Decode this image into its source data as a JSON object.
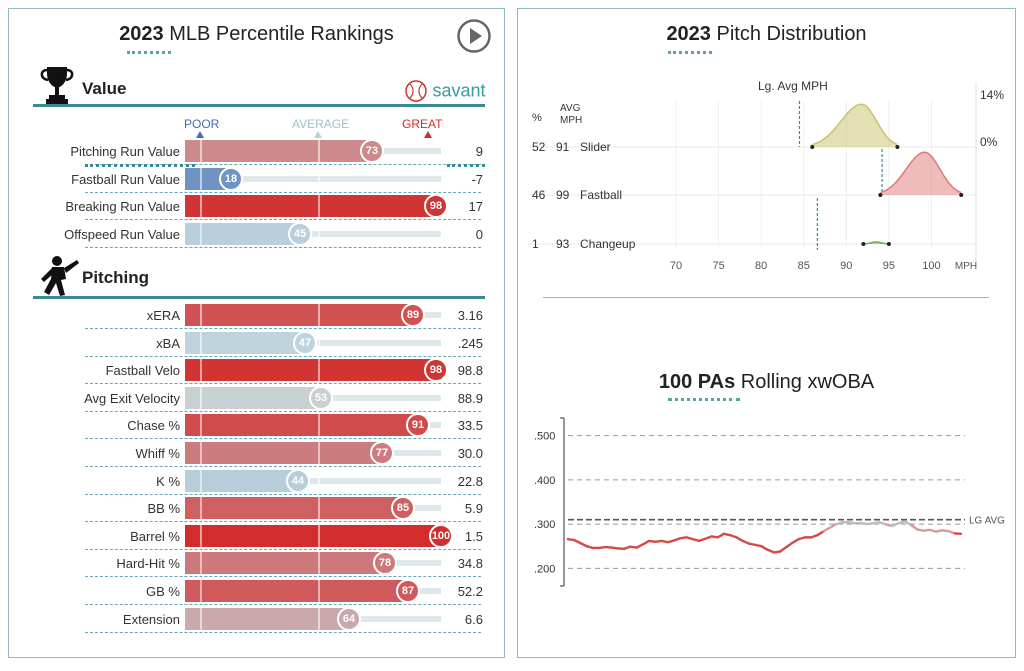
{
  "left": {
    "title_year": "2023",
    "title_rest": "MLB Percentile Rankings",
    "play_icon": "play-icon",
    "value_header": "Value",
    "value_icon": "trophy-icon",
    "savant_label": "savant",
    "savant_icon": "baseball-icon",
    "scale_labels": {
      "poor": "POOR",
      "average": "AVERAGE",
      "great": "GREAT"
    },
    "pitching_header": "Pitching",
    "pitching_icon": "pitcher-icon",
    "colors": {
      "poor": "#3e6cb5",
      "average": "#c7dadf",
      "great": "#d22c2c"
    },
    "value_rows": [
      {
        "label": "Pitching Run Value",
        "percentile": 73,
        "value": "9"
      },
      {
        "label": "Fastball Run Value",
        "percentile": 18,
        "value": "-7"
      },
      {
        "label": "Breaking Run Value",
        "percentile": 98,
        "value": "17"
      },
      {
        "label": "Offspeed Run Value",
        "percentile": 45,
        "value": "0"
      }
    ],
    "pitching_rows": [
      {
        "label": "xERA",
        "percentile": 89,
        "value": "3.16"
      },
      {
        "label": "xBA",
        "percentile": 47,
        "value": ".245"
      },
      {
        "label": "Fastball Velo",
        "percentile": 98,
        "value": "98.8"
      },
      {
        "label": "Avg Exit Velocity",
        "percentile": 53,
        "value": "88.9"
      },
      {
        "label": "Chase %",
        "percentile": 91,
        "value": "33.5"
      },
      {
        "label": "Whiff %",
        "percentile": 77,
        "value": "30.0"
      },
      {
        "label": "K %",
        "percentile": 44,
        "value": "22.8"
      },
      {
        "label": "BB %",
        "percentile": 85,
        "value": "5.9"
      },
      {
        "label": "Barrel %",
        "percentile": 100,
        "value": "1.5"
      },
      {
        "label": "Hard-Hit %",
        "percentile": 78,
        "value": "34.8"
      },
      {
        "label": "GB %",
        "percentile": 87,
        "value": "52.2"
      },
      {
        "label": "Extension",
        "percentile": 64,
        "value": "6.6"
      }
    ]
  },
  "right": {
    "pitch_title_year": "2023",
    "pitch_title_rest": "Pitch Distribution",
    "rolling_title_bold": "100 PAs",
    "rolling_title_rest": "Rolling xwOBA"
  },
  "chart_data": [
    {
      "type": "area",
      "title": "2023 Pitch Distribution",
      "column_headers": [
        "%",
        "AVG MPH"
      ],
      "lg_avg_label": "Lg. Avg MPH",
      "y_max_label": "14%",
      "y_min_label": "0%",
      "x_ticks": [
        70,
        75,
        80,
        85,
        90,
        95,
        100
      ],
      "x_unit": "MPH",
      "xlim": [
        66,
        105
      ],
      "pitches": [
        {
          "name": "Slider",
          "pct": 52,
          "avg_mph": 91,
          "color": "#c8c26a",
          "range": [
            86,
            96
          ],
          "peak": 91.8,
          "peak_pct": 13,
          "lg_avg": 84.5
        },
        {
          "name": "Fastball",
          "pct": 46,
          "avg_mph": 99,
          "color": "#e07878",
          "range": [
            94,
            103.5
          ],
          "peak": 99.2,
          "peak_pct": 13,
          "lg_avg": 94.2
        },
        {
          "name": "Changeup",
          "pct": 1,
          "avg_mph": 93,
          "color": "#6ab04c",
          "range": [
            92,
            95
          ],
          "peak": 93.5,
          "peak_pct": 0.6,
          "lg_avg": 86.6
        }
      ]
    },
    {
      "type": "line",
      "title": "100 PAs Rolling xwOBA",
      "y_ticks": [
        ".200",
        ".300",
        ".400",
        ".500"
      ],
      "y_tick_values": [
        0.2,
        0.3,
        0.4,
        0.5
      ],
      "ylim": [
        0.16,
        0.54
      ],
      "lg_avg": 0.31,
      "lg_avg_label": "LG AVG",
      "values": [
        0.266,
        0.264,
        0.257,
        0.25,
        0.246,
        0.246,
        0.248,
        0.247,
        0.245,
        0.244,
        0.249,
        0.247,
        0.254,
        0.262,
        0.26,
        0.262,
        0.259,
        0.263,
        0.268,
        0.27,
        0.266,
        0.262,
        0.267,
        0.272,
        0.27,
        0.278,
        0.275,
        0.27,
        0.262,
        0.256,
        0.253,
        0.25,
        0.242,
        0.236,
        0.238,
        0.248,
        0.258,
        0.266,
        0.27,
        0.27,
        0.275,
        0.284,
        0.292,
        0.3,
        0.304,
        0.304,
        0.302,
        0.302,
        0.3,
        0.302,
        0.304,
        0.299,
        0.296,
        0.302,
        0.306,
        0.298,
        0.288,
        0.285,
        0.287,
        0.283,
        0.286,
        0.284,
        0.279,
        0.278
      ]
    }
  ]
}
